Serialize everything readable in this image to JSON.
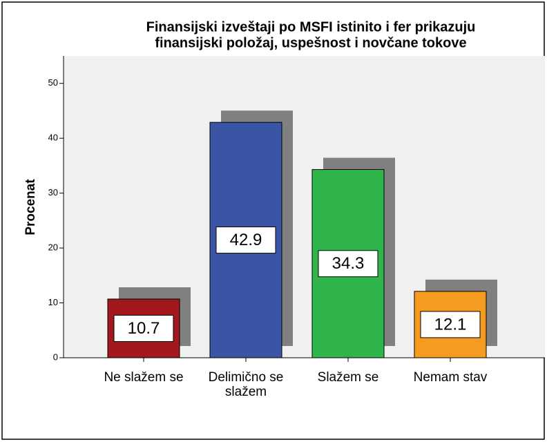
{
  "chart_data": {
    "type": "bar",
    "title": [
      "Finansijski izveštaji po MSFI istinito i fer prikazuju",
      "finansijski položaj, uspešnost i novčane tokove"
    ],
    "y_label": "Procenat",
    "categories": [
      "Ne slažem se",
      "Delimično se slažem",
      "Slažem se",
      "Nemam stav"
    ],
    "values": [
      10.7,
      42.9,
      34.3,
      12.1
    ],
    "colors": [
      "#a3181d",
      "#3b55a5",
      "#30b54b",
      "#f59b1f"
    ],
    "ylim": [
      0,
      55
    ],
    "yticks": [
      0,
      10,
      20,
      30,
      40,
      50
    ],
    "grid": false
  }
}
